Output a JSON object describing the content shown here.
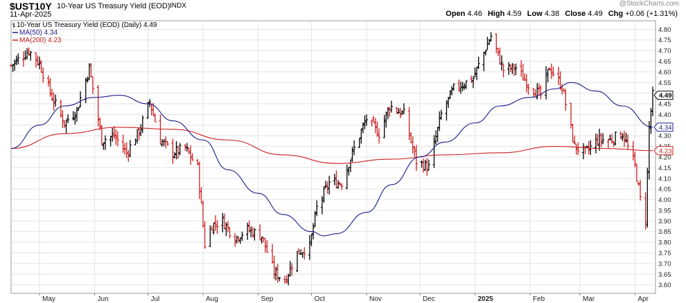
{
  "header": {
    "symbol": "$UST10Y",
    "description": "10-Year US Treasury Yield (EOD)",
    "exchange": "INDX",
    "date": "11-Apr-2025",
    "ohlc": [
      {
        "label": "Open",
        "value": "4.46"
      },
      {
        "label": "High",
        "value": "4.59"
      },
      {
        "label": "Low",
        "value": "4.38"
      },
      {
        "label": "Close",
        "value": "4.49"
      },
      {
        "label": "Chg",
        "value": "+0.06 (+1.31%)"
      }
    ],
    "watermark": "@StockCharts.com"
  },
  "legend": [
    {
      "text": "10-Year US Treasury Yield (EOD) (Daily) 4.49",
      "color": "#000000",
      "icon": "ohlc-bar-icon"
    },
    {
      "text": "MA(50) 4.34",
      "color": "#1a1a8c",
      "icon": "line-icon"
    },
    {
      "text": "MA(200) 4.23",
      "color": "#cc1f1f",
      "icon": "line-icon"
    }
  ],
  "colors": {
    "up": "#000000",
    "down": "#cc1f1f",
    "ma50": "#1a1a8c",
    "ma200": "#cc1f1f",
    "grid": "#e3e3e3"
  },
  "chart_data": {
    "type": "ohlc",
    "ylim": [
      3.56,
      4.84
    ],
    "y_ticks": [
      "4.80",
      "4.75",
      "4.70",
      "4.65",
      "4.60",
      "4.55",
      "4.50",
      "4.45",
      "4.40",
      "4.35",
      "4.30",
      "4.25",
      "4.20",
      "4.15",
      "4.10",
      "4.05",
      "4.00",
      "3.95",
      "3.90",
      "3.85",
      "3.80",
      "3.75",
      "3.70",
      "3.65",
      "3.60"
    ],
    "x_ticks": [
      {
        "label": "May",
        "date": "2024-05-01",
        "bold": false
      },
      {
        "label": "Jun",
        "date": "2024-06-01",
        "bold": false
      },
      {
        "label": "Jul",
        "date": "2024-07-01",
        "bold": false
      },
      {
        "label": "Aug",
        "date": "2024-08-01",
        "bold": false
      },
      {
        "label": "Sep",
        "date": "2024-09-01",
        "bold": false
      },
      {
        "label": "Oct",
        "date": "2024-10-01",
        "bold": false
      },
      {
        "label": "Nov",
        "date": "2024-11-01",
        "bold": false
      },
      {
        "label": "Dec",
        "date": "2024-12-01",
        "bold": false
      },
      {
        "label": "2025",
        "date": "2025-01-01",
        "bold": true
      },
      {
        "label": "Feb",
        "date": "2025-02-01",
        "bold": false
      },
      {
        "label": "Mar",
        "date": "2025-03-01",
        "bold": false
      },
      {
        "label": "Apr",
        "date": "2025-04-01",
        "bold": false
      }
    ],
    "date_range": [
      "2024-04-15",
      "2025-04-11"
    ],
    "price_series": [
      [
        "2024-04-15",
        4.63
      ],
      [
        "2024-04-25",
        4.7
      ],
      [
        "2024-05-01",
        4.64
      ],
      [
        "2024-05-08",
        4.48
      ],
      [
        "2024-05-15",
        4.36
      ],
      [
        "2024-05-22",
        4.42
      ],
      [
        "2024-05-29",
        4.62
      ],
      [
        "2024-06-05",
        4.28
      ],
      [
        "2024-06-12",
        4.3
      ],
      [
        "2024-06-19",
        4.22
      ],
      [
        "2024-06-26",
        4.32
      ],
      [
        "2024-07-02",
        4.46
      ],
      [
        "2024-07-08",
        4.28
      ],
      [
        "2024-07-15",
        4.22
      ],
      [
        "2024-07-22",
        4.24
      ],
      [
        "2024-07-29",
        4.15
      ],
      [
        "2024-08-02",
        3.79
      ],
      [
        "2024-08-06",
        3.88
      ],
      [
        "2024-08-12",
        3.9
      ],
      [
        "2024-08-19",
        3.82
      ],
      [
        "2024-08-26",
        3.86
      ],
      [
        "2024-09-03",
        3.83
      ],
      [
        "2024-09-10",
        3.66
      ],
      [
        "2024-09-16",
        3.62
      ],
      [
        "2024-09-23",
        3.75
      ],
      [
        "2024-09-30",
        3.78
      ],
      [
        "2024-10-04",
        3.96
      ],
      [
        "2024-10-11",
        4.08
      ],
      [
        "2024-10-18",
        4.08
      ],
      [
        "2024-10-25",
        4.24
      ],
      [
        "2024-11-01",
        4.38
      ],
      [
        "2024-11-08",
        4.31
      ],
      [
        "2024-11-14",
        4.44
      ],
      [
        "2024-11-22",
        4.4
      ],
      [
        "2024-11-29",
        4.18
      ],
      [
        "2024-12-06",
        4.15
      ],
      [
        "2024-12-13",
        4.4
      ],
      [
        "2024-12-20",
        4.52
      ],
      [
        "2024-12-31",
        4.57
      ],
      [
        "2025-01-10",
        4.77
      ],
      [
        "2025-01-17",
        4.61
      ],
      [
        "2025-01-24",
        4.62
      ],
      [
        "2025-01-31",
        4.54
      ],
      [
        "2025-02-07",
        4.49
      ],
      [
        "2025-02-12",
        4.62
      ],
      [
        "2025-02-19",
        4.53
      ],
      [
        "2025-02-26",
        4.25
      ],
      [
        "2025-03-04",
        4.22
      ],
      [
        "2025-03-11",
        4.28
      ],
      [
        "2025-03-18",
        4.28
      ],
      [
        "2025-03-25",
        4.31
      ],
      [
        "2025-04-01",
        4.16
      ],
      [
        "2025-04-04",
        4.0
      ],
      [
        "2025-04-07",
        3.91
      ],
      [
        "2025-04-09",
        4.34
      ],
      [
        "2025-04-11",
        4.49
      ]
    ],
    "ma50_series": [
      [
        "2024-04-15",
        4.24
      ],
      [
        "2024-05-01",
        4.35
      ],
      [
        "2024-05-15",
        4.44
      ],
      [
        "2024-06-01",
        4.48
      ],
      [
        "2024-06-15",
        4.49
      ],
      [
        "2024-07-01",
        4.45
      ],
      [
        "2024-07-15",
        4.37
      ],
      [
        "2024-08-01",
        4.28
      ],
      [
        "2024-08-15",
        4.14
      ],
      [
        "2024-09-01",
        4.03
      ],
      [
        "2024-09-15",
        3.93
      ],
      [
        "2024-10-01",
        3.85
      ],
      [
        "2024-10-08",
        3.83
      ],
      [
        "2024-10-15",
        3.84
      ],
      [
        "2024-11-01",
        3.94
      ],
      [
        "2024-11-15",
        4.07
      ],
      [
        "2024-12-01",
        4.2
      ],
      [
        "2024-12-15",
        4.27
      ],
      [
        "2025-01-01",
        4.36
      ],
      [
        "2025-01-15",
        4.44
      ],
      [
        "2025-02-01",
        4.48
      ],
      [
        "2025-02-15",
        4.52
      ],
      [
        "2025-02-24",
        4.55
      ],
      [
        "2025-03-10",
        4.51
      ],
      [
        "2025-03-25",
        4.44
      ],
      [
        "2025-04-11",
        4.34
      ]
    ],
    "ma200_series": [
      [
        "2024-04-15",
        4.24
      ],
      [
        "2024-05-15",
        4.31
      ],
      [
        "2024-06-15",
        4.34
      ],
      [
        "2024-07-15",
        4.33
      ],
      [
        "2024-08-15",
        4.28
      ],
      [
        "2024-09-15",
        4.21
      ],
      [
        "2024-10-15",
        4.17
      ],
      [
        "2024-11-15",
        4.19
      ],
      [
        "2024-12-15",
        4.21
      ],
      [
        "2025-01-15",
        4.22
      ],
      [
        "2025-02-15",
        4.25
      ],
      [
        "2025-03-15",
        4.24
      ],
      [
        "2025-04-11",
        4.23
      ]
    ],
    "last_labels": [
      {
        "value": "4.49",
        "series": "close"
      },
      {
        "value": "4.34",
        "series": "ma50"
      },
      {
        "value": "4.23",
        "series": "ma200"
      }
    ]
  }
}
